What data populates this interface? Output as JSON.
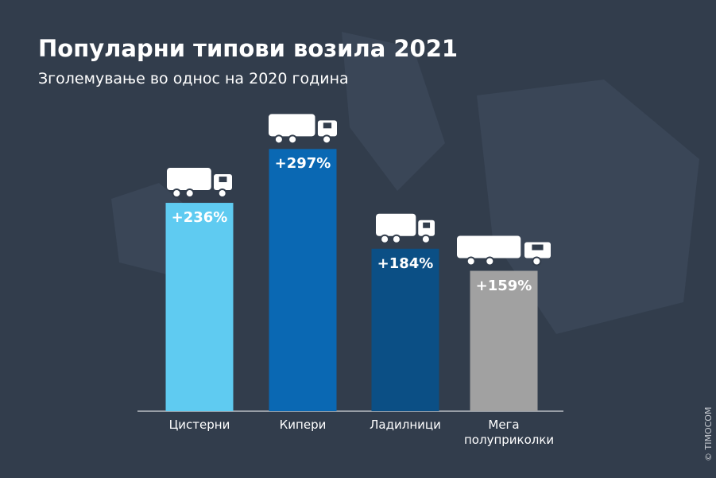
{
  "chart_data": {
    "type": "bar",
    "title": "Популарни типови возила 2021",
    "subtitle": "Зголемување во однос на 2020 година",
    "categories": [
      "Цистерни",
      "Кипери",
      "Ладилници",
      "Мега полуприколки"
    ],
    "values": [
      236,
      297,
      184,
      159
    ],
    "value_labels": [
      "+236%",
      "+297%",
      "+184%",
      "+159%"
    ],
    "colors": [
      "#5fcbf1",
      "#0a68b3",
      "#0b4f85",
      "#a1a1a1"
    ],
    "watermark": "© TIMOCOM"
  }
}
